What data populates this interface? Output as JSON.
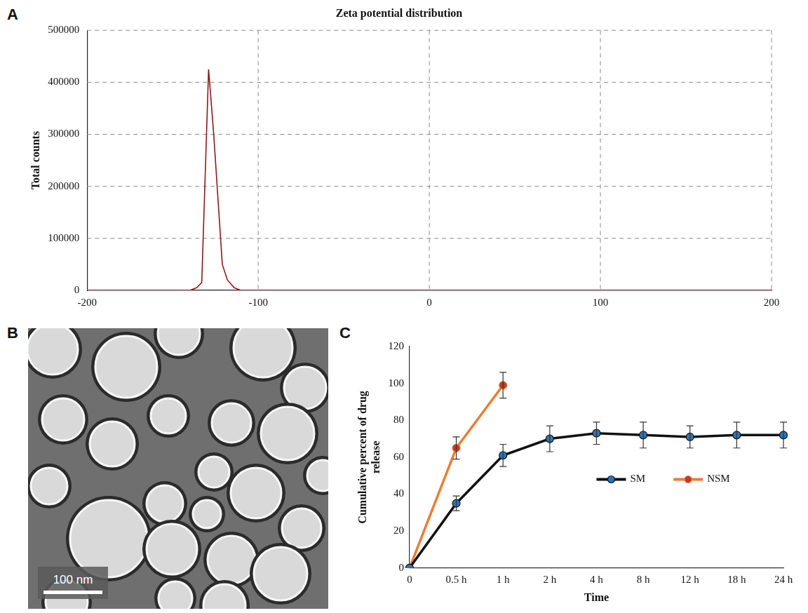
{
  "chart_data": [
    {
      "panel": "A",
      "type": "line",
      "title": "Zeta potential distribution",
      "y_label": "Total counts",
      "x": [
        -200,
        -140,
        -136,
        -133,
        -129,
        -126,
        -123,
        -121,
        -118,
        -114,
        -110,
        200
      ],
      "values": [
        0,
        0,
        5000,
        15000,
        425000,
        300000,
        150000,
        50000,
        20000,
        5000,
        0,
        0
      ],
      "color": "#8b1a1a",
      "marker": "none",
      "xlim": [
        -200,
        200
      ],
      "xticks": [
        -200,
        -100,
        0,
        100,
        200
      ],
      "ylim": [
        0,
        500000
      ],
      "yticks": [
        0,
        100000,
        200000,
        300000,
        400000,
        500000
      ],
      "grid": true
    },
    {
      "panel": "C",
      "type": "line",
      "x_label": "Time",
      "y_label": "Cumulative percent of drug release",
      "categories": [
        "0",
        "0.5 h",
        "1 h",
        "2 h",
        "4 h",
        "8 h",
        "12 h",
        "18 h",
        "24 h"
      ],
      "series": [
        {
          "name": "SM",
          "color": "#111111",
          "marker": "circle",
          "values": [
            0,
            35,
            61,
            70,
            73,
            72,
            71,
            72,
            72
          ],
          "errors": [
            null,
            4,
            6,
            7,
            6,
            7,
            6,
            7,
            7
          ]
        },
        {
          "name": "NSM",
          "color": "#ed7d31",
          "marker": "circle",
          "values": [
            0,
            65,
            99,
            null,
            null,
            null,
            null,
            null,
            null
          ],
          "errors": [
            null,
            6,
            7,
            null,
            null,
            null,
            null,
            null,
            null
          ]
        }
      ],
      "ylim": [
        0,
        120
      ],
      "yticks": [
        0,
        20,
        40,
        60,
        80,
        100,
        120
      ],
      "grid": false,
      "legend": "right"
    }
  ],
  "image_panel": {
    "panel": "B",
    "scale_bar": "100 nm"
  }
}
